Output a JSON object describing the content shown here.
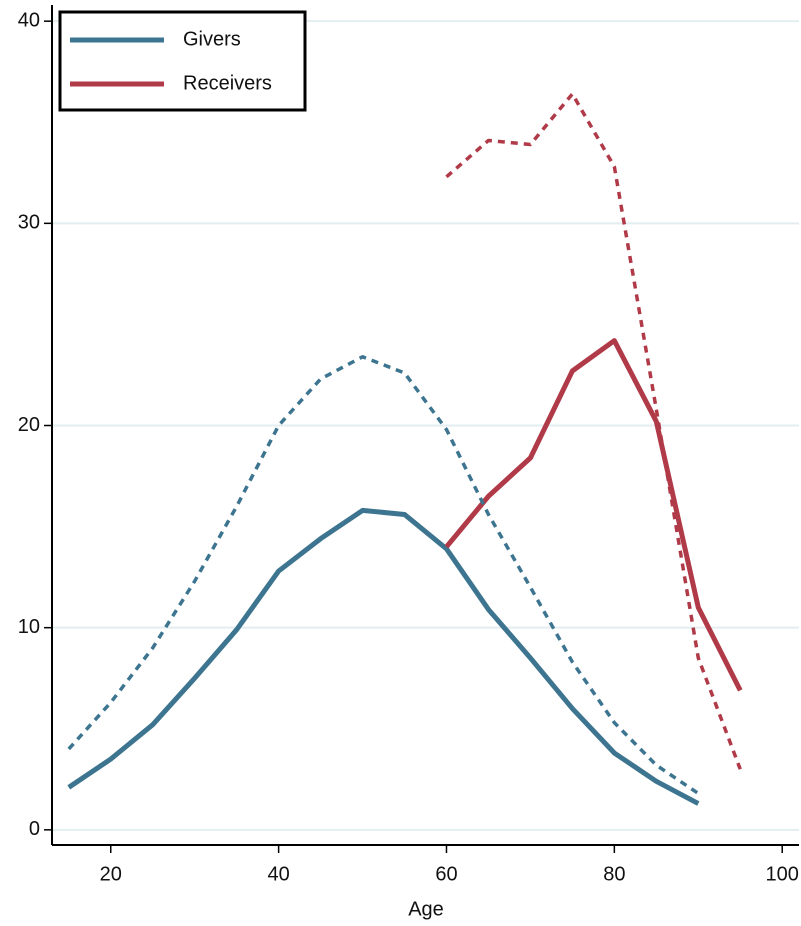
{
  "chart_data": {
    "type": "line",
    "x_label": "Age",
    "x": [
      15,
      20,
      25,
      30,
      35,
      40,
      45,
      50,
      55,
      60,
      65,
      70,
      75,
      80,
      85,
      90,
      95
    ],
    "series": [
      {
        "name": "Givers",
        "color": "#3d7590",
        "dashed": false,
        "values": [
          2.1,
          3.5,
          5.2,
          7.5,
          9.9,
          12.8,
          14.4,
          15.8,
          15.6,
          13.9,
          10.9,
          8.5,
          6.0,
          3.8,
          2.4,
          1.3,
          null
        ]
      },
      {
        "name": "Receivers",
        "color": "#b03a48",
        "dashed": false,
        "values": [
          null,
          null,
          null,
          null,
          null,
          null,
          null,
          null,
          null,
          14.0,
          16.5,
          18.4,
          22.7,
          24.2,
          20.2,
          11.0,
          6.9
        ]
      },
      {
        "color": "#3d7590",
        "dashed": true,
        "values": [
          4.0,
          6.3,
          9.0,
          12.3,
          16.0,
          20.0,
          22.3,
          23.4,
          22.6,
          19.8,
          15.6,
          12.0,
          8.3,
          5.3,
          3.2,
          1.8,
          null
        ]
      },
      {
        "color": "#b03a48",
        "dashed": true,
        "values": [
          null,
          null,
          null,
          null,
          null,
          null,
          null,
          null,
          null,
          32.3,
          34.1,
          33.9,
          36.4,
          32.8,
          20.8,
          8.5,
          3.0
        ]
      }
    ],
    "xlim": [
      13,
      102
    ],
    "xticks": [
      20,
      40,
      60,
      80,
      100
    ],
    "ylim": [
      -0.75,
      40.8
    ],
    "yticks": [
      0,
      10,
      20,
      30,
      40
    ],
    "grid": true,
    "legend": "upper-left"
  }
}
